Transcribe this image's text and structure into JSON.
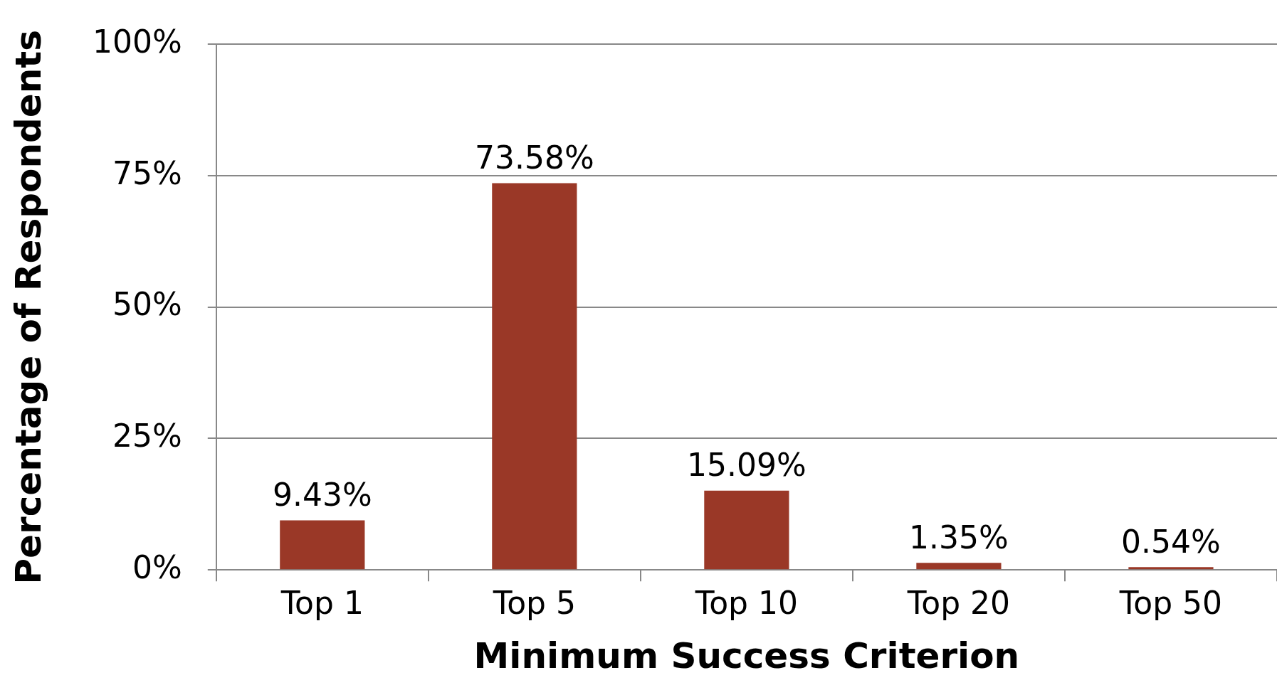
{
  "chart_data": {
    "type": "bar",
    "xlabel": "Minimum Success Criterion",
    "ylabel": "Percentage of Respondents",
    "categories": [
      "Top 1",
      "Top 5",
      "Top 10",
      "Top 20",
      "Top 50"
    ],
    "values": [
      9.43,
      73.58,
      15.09,
      1.35,
      0.54
    ],
    "value_labels": [
      "9.43%",
      "73.58%",
      "15.09%",
      "1.35%",
      "0.54%"
    ],
    "color": "#9a3827",
    "ylim": [
      0,
      100
    ],
    "yticks": [
      {
        "value": 0,
        "label": "0%"
      },
      {
        "value": 25,
        "label": "25%"
      },
      {
        "value": 50,
        "label": "50%"
      },
      {
        "value": 75,
        "label": "75%"
      },
      {
        "value": 100,
        "label": "100%"
      }
    ],
    "grid": "y",
    "legend": false
  }
}
